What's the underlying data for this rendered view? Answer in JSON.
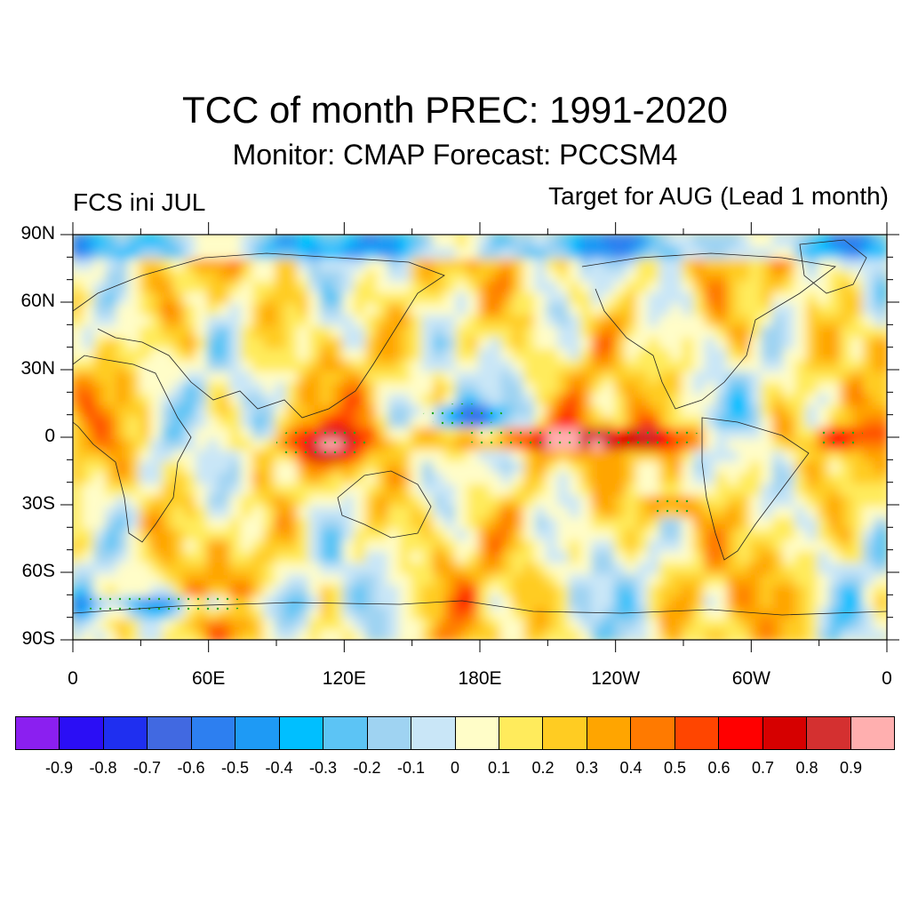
{
  "title": "TCC of month PREC: 1991-2020",
  "subtitle": "Monitor: CMAP   Forecast: PCCSM4",
  "left_label": "FCS ini JUL",
  "right_label": "Target for AUG (Lead 1 month)",
  "map": {
    "projection": "cylindrical-equidistant",
    "lon_range": [
      0,
      360
    ],
    "lat_range": [
      -90,
      90
    ],
    "lat_ticks": [
      {
        "lat": 90,
        "label": "90N"
      },
      {
        "lat": 60,
        "label": "60N"
      },
      {
        "lat": 30,
        "label": "30N"
      },
      {
        "lat": 0,
        "label": "0"
      },
      {
        "lat": -30,
        "label": "30S"
      },
      {
        "lat": -60,
        "label": "60S"
      },
      {
        "lat": -90,
        "label": "90S"
      }
    ],
    "lon_ticks": [
      {
        "lon": 0,
        "label": "0"
      },
      {
        "lon": 60,
        "label": "60E"
      },
      {
        "lon": 120,
        "label": "120E"
      },
      {
        "lon": 180,
        "label": "180E"
      },
      {
        "lon": 240,
        "label": "120W"
      },
      {
        "lon": 300,
        "label": "60W"
      },
      {
        "lon": 360,
        "label": "0"
      }
    ],
    "features": [
      {
        "name": "equatorial-pacific-max",
        "lon": [
          170,
          280
        ],
        "lat": [
          -5,
          5
        ],
        "level": 0.9
      },
      {
        "name": "maritime-continent-max",
        "lon": [
          90,
          130
        ],
        "lat": [
          -10,
          5
        ],
        "level": 0.7
      },
      {
        "name": "tropical-atlantic-max",
        "lon": [
          330,
          350
        ],
        "lat": [
          -5,
          5
        ],
        "level": 0.7
      },
      {
        "name": "southeast-pacific-max",
        "lon": [
          255,
          275
        ],
        "lat": [
          -35,
          -25
        ],
        "level": 0.6
      },
      {
        "name": "antarctic-negative",
        "lon": [
          0,
          80
        ],
        "lat": [
          -78,
          -70
        ],
        "level": -0.4
      },
      {
        "name": "north-pacific-negative",
        "lon": [
          155,
          190
        ],
        "lat": [
          5,
          15
        ],
        "level": -0.5
      }
    ]
  },
  "colorbar": {
    "colors": [
      "#8b1ff0",
      "#2b0ef5",
      "#1f2ff0",
      "#4169e1",
      "#2d7ff0",
      "#1e9af5",
      "#00bfff",
      "#5cc4f5",
      "#9fd3f2",
      "#c9e6f7",
      "#fffdc8",
      "#ffeb5c",
      "#ffcc22",
      "#ffa500",
      "#ff7a00",
      "#ff4500",
      "#ff0000",
      "#d60000",
      "#d43030",
      "#ffafaf"
    ],
    "labels": [
      "-0.9",
      "-0.8",
      "-0.7",
      "-0.6",
      "-0.5",
      "-0.4",
      "-0.3",
      "-0.2",
      "-0.1",
      "0",
      "0.1",
      "0.2",
      "0.3",
      "0.4",
      "0.5",
      "0.6",
      "0.7",
      "0.8",
      "0.9"
    ]
  }
}
